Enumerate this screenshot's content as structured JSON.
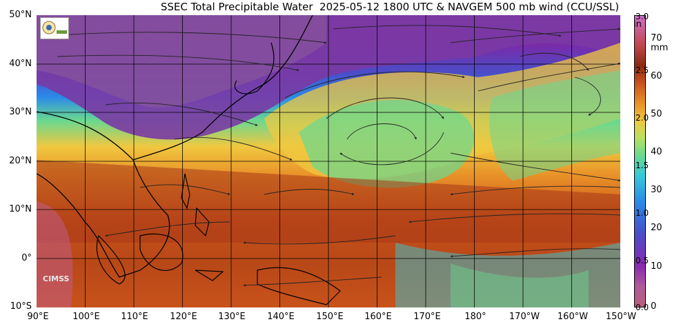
{
  "title": "SSEC Total Precipitable Water  2025-05-12 1800 UTC & NAVGEM 500 mb wind (CCU/SSL)",
  "lat_labels": [
    "50°N",
    "40°N",
    "30°N",
    "20°N",
    "10°N",
    "0°",
    "10°S"
  ],
  "lon_labels": [
    "90°E",
    "100°E",
    "110°E",
    "120°E",
    "130°E",
    "140°E",
    "150°E",
    "160°E",
    "170°E",
    "180°",
    "170°W",
    "160°W",
    "150°W"
  ],
  "colorbar": {
    "in_unit": "in",
    "mm_unit": "mm",
    "in_ticks": [
      "3.0",
      "2.5",
      "2.0",
      "1.5",
      "1.0",
      "0.5",
      "0.0"
    ],
    "mm_ticks": [
      "70",
      "60",
      "50",
      "40",
      "30",
      "20",
      "10",
      "0"
    ],
    "colors": [
      "#b9607a",
      "#c44a88",
      "#7a2aa8",
      "#4a4ec8",
      "#2a8ae8",
      "#36c8d8",
      "#6ad890",
      "#b8e060",
      "#f0c840",
      "#e89028",
      "#c8521a",
      "#8a2a14",
      "#c04850",
      "#d060a0",
      "#d070c8"
    ]
  },
  "logo_text": "CIMSS"
}
